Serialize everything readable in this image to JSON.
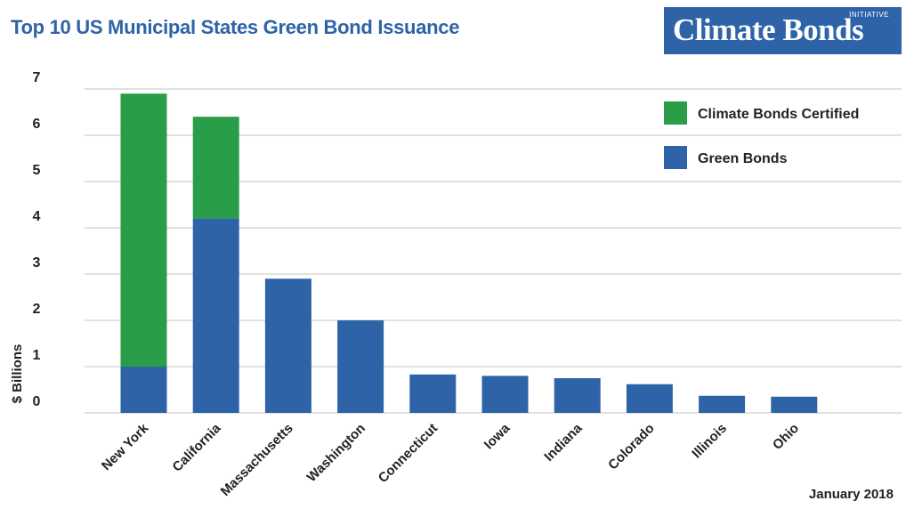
{
  "title": "Top 10 US Municipal States Green Bond Issuance",
  "logo": {
    "main": "Climate Bonds",
    "sub": "INITIATIVE"
  },
  "footer": "January 2018",
  "colors": {
    "certified": "#2a9d48",
    "green_bonds": "#2e63a8",
    "title": "#2e63a8",
    "grid": "#cfcfcf"
  },
  "chart_data": {
    "type": "bar",
    "stacked": true,
    "title": "Top 10 US Municipal States Green Bond Issuance",
    "xlabel": "",
    "ylabel": "$ Billions",
    "ylim": [
      0,
      7
    ],
    "yticks": [
      0,
      1,
      2,
      3,
      4,
      5,
      6,
      7
    ],
    "grid": true,
    "legend_position": "top-right",
    "categories": [
      "New York",
      "California",
      "Massachusetts",
      "Washington",
      "Connecticut",
      "Iowa",
      "Indiana",
      "Colorado",
      "Illinois",
      "Ohio"
    ],
    "series": [
      {
        "name": "Green Bonds",
        "color": "#2e63a8",
        "values": [
          1.0,
          4.2,
          2.9,
          2.0,
          0.83,
          0.8,
          0.75,
          0.62,
          0.37,
          0.35
        ]
      },
      {
        "name": "Climate Bonds Certified",
        "color": "#2a9d48",
        "values": [
          5.9,
          2.2,
          0,
          0,
          0,
          0,
          0,
          0,
          0,
          0
        ]
      }
    ],
    "legend": [
      "Climate Bonds Certified",
      "Green Bonds"
    ]
  }
}
